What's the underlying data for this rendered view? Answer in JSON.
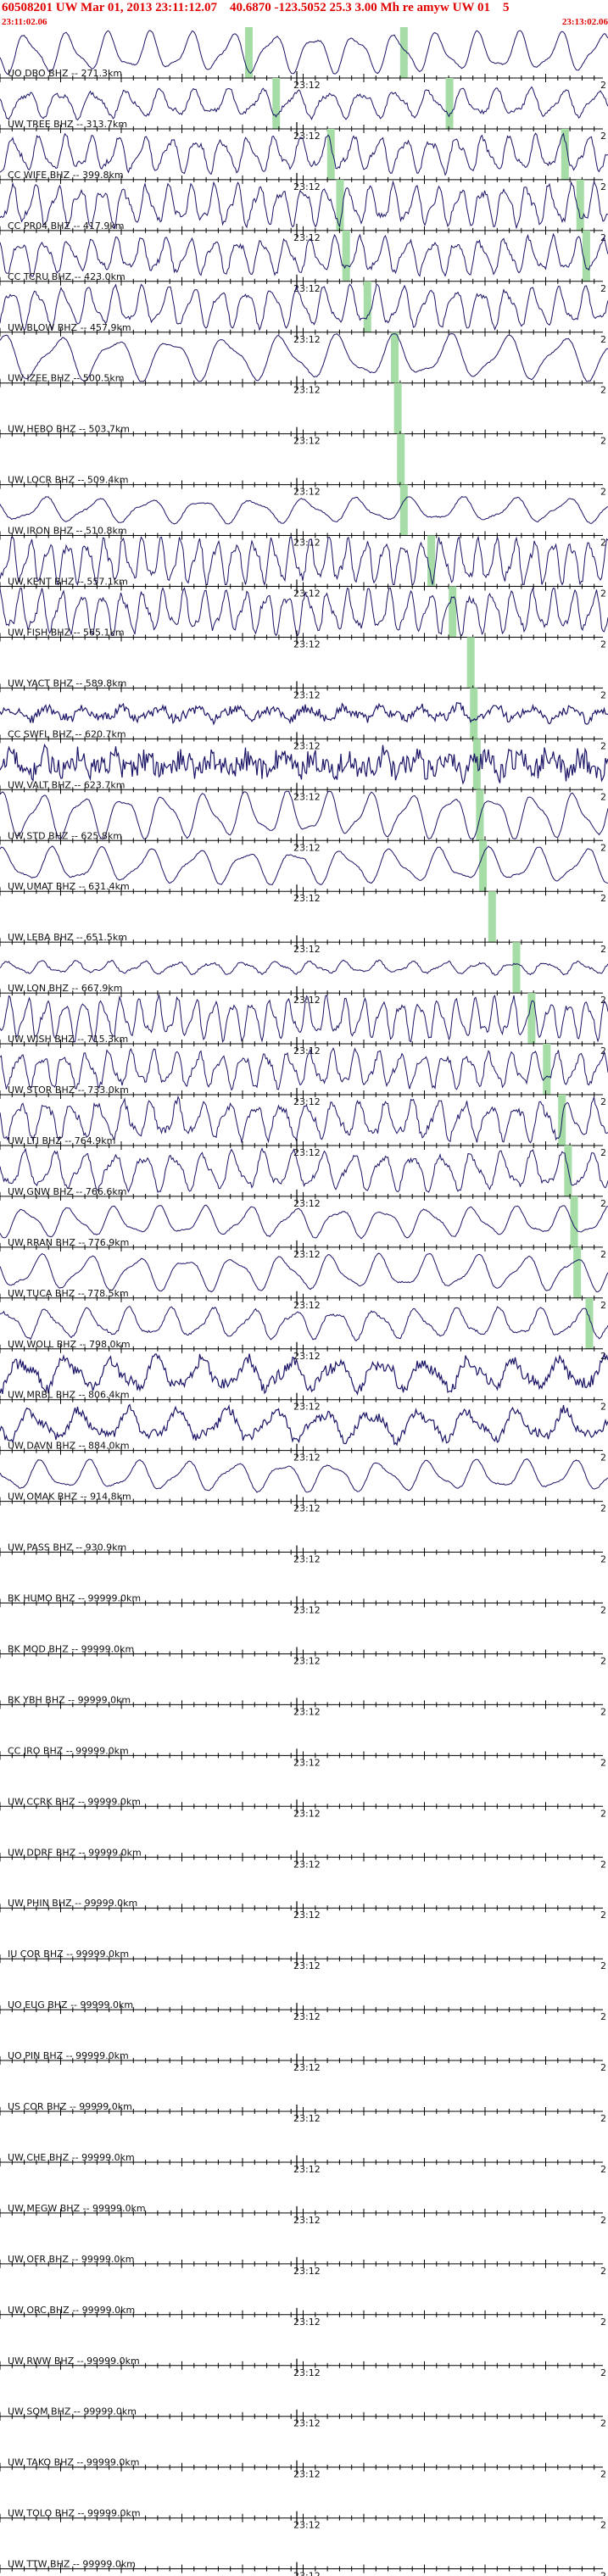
{
  "header": {
    "title": "60508201 UW Mar 01, 2013 23:11:12.07    40.6870 -123.5052 25.3 3.00 Mh re amyw UW 01    5",
    "start_time": "23:11:02.06",
    "end_time": "23:13:02.06"
  },
  "colors": {
    "header_text": "#e00000",
    "trace": "#1a1466",
    "pick": "#a6dca6",
    "axis": "#000000"
  },
  "chart_data": {
    "type": "line",
    "title": "60508201 UW Mar 01, 2013 23:11:12.07    40.6870 -123.5052 25.3 3.00 Mh re amyw UW 01    5",
    "x_tick_label": "23:12",
    "end_tick_label": "2",
    "traces": [
      {
        "label": "UO DBO BHZ -- 271.3km",
        "pick_x": 0.41,
        "pick2_x": 0.665,
        "amplitude": 0.8,
        "noise": 0.05,
        "period": 22,
        "has_signal": true
      },
      {
        "label": "UW TREE BHZ -- 313.7km",
        "pick_x": 0.455,
        "pick2_x": 0.74,
        "amplitude": 0.55,
        "noise": 0.15,
        "period": 18,
        "has_signal": true
      },
      {
        "label": "CC WIFE BHZ -- 399.8km",
        "pick_x": 0.545,
        "pick2_x": 0.93,
        "amplitude": 0.7,
        "noise": 0.2,
        "period": 14,
        "has_signal": true
      },
      {
        "label": "CC PR04 BHZ -- 417.9km",
        "pick_x": 0.56,
        "pick2_x": 0.955,
        "amplitude": 0.8,
        "noise": 0.25,
        "period": 12,
        "has_signal": true
      },
      {
        "label": "CC TCRU BHZ -- 423.0km",
        "pick_x": 0.57,
        "pick2_x": 0.965,
        "amplitude": 0.7,
        "noise": 0.2,
        "period": 13,
        "has_signal": true
      },
      {
        "label": "UW BLOW BHZ -- 457.9km",
        "pick_x": 0.605,
        "amplitude": 0.8,
        "noise": 0.15,
        "period": 14,
        "has_signal": true
      },
      {
        "label": "UW IZEE BHZ -- 500.5km",
        "pick_x": 0.65,
        "amplitude": 0.9,
        "noise": 0.05,
        "period": 30,
        "has_signal": true
      },
      {
        "label": "UW HEBO BHZ -- 503.7km",
        "pick_x": 0.655,
        "amplitude": 0,
        "noise": 0,
        "period": 0,
        "has_signal": false
      },
      {
        "label": "UW LOCR BHZ -- 509.4km",
        "pick_x": 0.66,
        "amplitude": 0,
        "noise": 0,
        "period": 0,
        "has_signal": false
      },
      {
        "label": "UW IRON BHZ -- 510.8km",
        "pick_x": 0.665,
        "amplitude": 0.5,
        "noise": 0.05,
        "period": 28,
        "has_signal": true
      },
      {
        "label": "UW KENT BHZ -- 557.1km",
        "pick_x": 0.71,
        "amplitude": 0.9,
        "noise": 0.3,
        "period": 10,
        "has_signal": true
      },
      {
        "label": "UW FISH BHZ -- 565.1km",
        "pick_x": 0.745,
        "amplitude": 0.85,
        "noise": 0.25,
        "period": 11,
        "has_signal": true
      },
      {
        "label": "UW YACT BHZ -- 589.8km",
        "pick_x": 0.775,
        "amplitude": 0,
        "noise": 0,
        "period": 0,
        "has_signal": false
      },
      {
        "label": "CC SWFL BHZ -- 620.7km",
        "pick_x": 0.78,
        "amplitude": 0.25,
        "noise": 0.35,
        "period": 20,
        "has_signal": true
      },
      {
        "label": "UW VALT BHZ -- 623.7km",
        "pick_x": 0.785,
        "amplitude": 0.3,
        "noise": 0.9,
        "period": 18,
        "has_signal": true
      },
      {
        "label": "UW STD BHZ -- 625.8km",
        "pick_x": 0.79,
        "amplitude": 0.9,
        "noise": 0.05,
        "period": 22,
        "has_signal": true
      },
      {
        "label": "UW UMAT BHZ -- 631.4km",
        "pick_x": 0.795,
        "amplitude": 0.7,
        "noise": 0.05,
        "period": 26,
        "has_signal": true
      },
      {
        "label": "UW LEBA BHZ -- 651.5km",
        "pick_x": 0.81,
        "amplitude": 0,
        "noise": 0,
        "period": 0,
        "has_signal": false
      },
      {
        "label": "UW LON BHZ -- 667.9km",
        "pick_x": 0.85,
        "amplitude": 0.25,
        "noise": 0.08,
        "period": 18,
        "has_signal": true
      },
      {
        "label": "UW WISH BHZ -- 715.3km",
        "pick_x": 0.875,
        "amplitude": 0.8,
        "noise": 0.2,
        "period": 10,
        "has_signal": true
      },
      {
        "label": "UW STOR BHZ -- 733.0km",
        "pick_x": 0.9,
        "amplitude": 0.7,
        "noise": 0.25,
        "period": 12,
        "has_signal": true
      },
      {
        "label": "UW LTI BHZ -- 764.9km",
        "pick_x": 0.925,
        "amplitude": 0.75,
        "noise": 0.3,
        "period": 14,
        "has_signal": true
      },
      {
        "label": "UW GNW BHZ -- 766.6km",
        "pick_x": 0.935,
        "amplitude": 0.75,
        "noise": 0.2,
        "period": 16,
        "has_signal": true
      },
      {
        "label": "UW RRAN BHZ -- 776.9km",
        "pick_x": 0.945,
        "amplitude": 0.6,
        "noise": 0.05,
        "period": 24,
        "has_signal": true
      },
      {
        "label": "UW TUCA BHZ -- 778.5km",
        "pick_x": 0.95,
        "amplitude": 0.7,
        "noise": 0.05,
        "period": 26,
        "has_signal": true
      },
      {
        "label": "UW WOLL BHZ -- 798.0km",
        "pick_x": 0.97,
        "amplitude": 0.6,
        "noise": 0.1,
        "period": 22,
        "has_signal": true
      },
      {
        "label": "UW MRBL BHZ -- 806.4km",
        "amplitude": 0.6,
        "noise": 0.45,
        "period": 24,
        "has_signal": true
      },
      {
        "label": "UW DAVN BHZ -- 884.0km",
        "amplitude": 0.6,
        "noise": 0.35,
        "period": 26,
        "has_signal": true
      },
      {
        "label": "UW OMAK BHZ -- 914.8km",
        "amplitude": 0.6,
        "noise": 0.05,
        "period": 26,
        "has_signal": true
      },
      {
        "label": "UW PASS BHZ -- 930.9km",
        "has_signal": false
      },
      {
        "label": "BK HUMO BHZ -- 99999.0km",
        "has_signal": false
      },
      {
        "label": "BK MOD BHZ -- 99999.0km",
        "has_signal": false
      },
      {
        "label": "BK YBH BHZ -- 99999.0km",
        "has_signal": false
      },
      {
        "label": "CC JRO BHZ -- 99999.0km",
        "has_signal": false
      },
      {
        "label": "UW CCRK BHZ -- 99999.0km",
        "has_signal": false
      },
      {
        "label": "UW DDRF BHZ -- 99999.0km",
        "has_signal": false
      },
      {
        "label": "UW PHIN BHZ -- 99999.0km",
        "has_signal": false
      },
      {
        "label": "IU COR BHZ -- 99999.0km",
        "has_signal": false
      },
      {
        "label": "UO EUG BHZ -- 99999.0km",
        "has_signal": false
      },
      {
        "label": "UO PIN BHZ -- 99999.0km",
        "has_signal": false
      },
      {
        "label": "US COR BHZ -- 99999.0km",
        "has_signal": false
      },
      {
        "label": "UW CHE BHZ -- 99999.0km",
        "has_signal": false
      },
      {
        "label": "UW MEGW BHZ -- 99999.0km",
        "has_signal": false
      },
      {
        "label": "UW OFR BHZ -- 99999.0km",
        "has_signal": false
      },
      {
        "label": "UW ORC BHZ -- 99999.0km",
        "has_signal": false
      },
      {
        "label": "UW RWW BHZ -- 99999.0km",
        "has_signal": false
      },
      {
        "label": "UW SQM BHZ -- 99999.0km",
        "has_signal": false
      },
      {
        "label": "UW TAKO BHZ -- 99999.0km",
        "has_signal": false
      },
      {
        "label": "UW TOLO BHZ -- 99999.0km",
        "has_signal": false
      },
      {
        "label": "UW TTW BHZ -- 99999.0km",
        "has_signal": false
      }
    ]
  }
}
